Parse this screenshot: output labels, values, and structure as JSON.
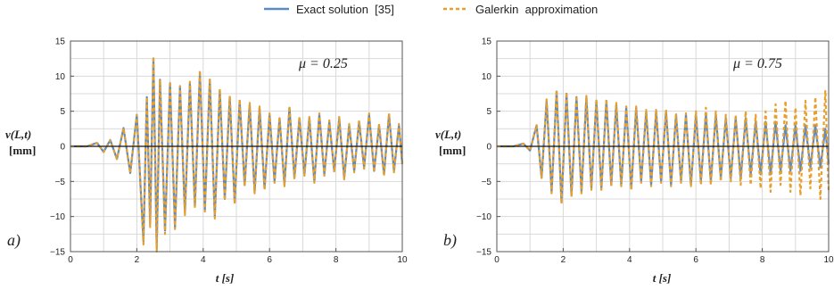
{
  "legend": [
    {
      "label": "Exact solution  [35]",
      "color": "#5b8ac6",
      "dash": "solid"
    },
    {
      "label": "Galerkin  approximation",
      "color": "#e8a02c",
      "dash": "dashed"
    }
  ],
  "chart_data": [
    {
      "type": "line",
      "panel_tag": "a)",
      "annotation": "μ = 0.25",
      "xlabel": "t [s]",
      "ylabel_line1": "v(L,t)",
      "ylabel_line2": "[mm]",
      "xlim": [
        0,
        10
      ],
      "ylim": [
        -15,
        15
      ],
      "xticks": [
        0,
        2,
        4,
        6,
        8,
        10
      ],
      "yticks": [
        -15,
        -10,
        -5,
        0,
        5,
        10,
        15
      ],
      "grid": true,
      "series": [
        {
          "name": "Exact solution  [35]",
          "peaks": [
            [
              0.8,
              0.5
            ],
            [
              1.0,
              -0.8
            ],
            [
              1.2,
              0.9
            ],
            [
              1.4,
              -1.8
            ],
            [
              1.6,
              2.6
            ],
            [
              1.8,
              -3.8
            ],
            [
              2.0,
              4.5
            ],
            [
              2.2,
              -13.5
            ],
            [
              2.3,
              7.0
            ],
            [
              2.4,
              -11.0
            ],
            [
              2.5,
              12.5
            ],
            [
              2.6,
              -14.5
            ],
            [
              2.7,
              9.5
            ],
            [
              2.85,
              -12.0
            ],
            [
              3.0,
              9.0
            ],
            [
              3.15,
              -11.5
            ],
            [
              3.3,
              8.5
            ],
            [
              3.45,
              -9.5
            ],
            [
              3.6,
              9.0
            ],
            [
              3.75,
              -8.5
            ],
            [
              3.9,
              10.5
            ],
            [
              4.05,
              -9.0
            ],
            [
              4.2,
              9.5
            ],
            [
              4.35,
              -10.0
            ],
            [
              4.5,
              8.0
            ],
            [
              4.65,
              -7.5
            ],
            [
              4.8,
              7.0
            ],
            [
              4.95,
              -8.0
            ],
            [
              5.1,
              6.5
            ],
            [
              5.25,
              -5.5
            ],
            [
              5.4,
              6.0
            ],
            [
              5.55,
              -6.5
            ],
            [
              5.7,
              5.5
            ],
            [
              5.85,
              -6.0
            ],
            [
              6.0,
              4.5
            ],
            [
              6.15,
              -5.0
            ],
            [
              6.3,
              4.0
            ],
            [
              6.45,
              -5.5
            ],
            [
              6.6,
              5.5
            ],
            [
              6.75,
              -4.5
            ],
            [
              6.9,
              4.0
            ],
            [
              7.05,
              -4.0
            ],
            [
              7.2,
              4.0
            ],
            [
              7.35,
              -5.0
            ],
            [
              7.5,
              4.5
            ],
            [
              7.65,
              -4.0
            ],
            [
              7.8,
              3.5
            ],
            [
              7.95,
              -3.5
            ],
            [
              8.1,
              4.0
            ],
            [
              8.25,
              -4.5
            ],
            [
              8.4,
              3.0
            ],
            [
              8.55,
              -3.5
            ],
            [
              8.7,
              3.5
            ],
            [
              8.85,
              -3.0
            ],
            [
              9.0,
              4.5
            ],
            [
              9.15,
              -3.5
            ],
            [
              9.3,
              3.0
            ],
            [
              9.45,
              -4.0
            ],
            [
              9.6,
              4.5
            ],
            [
              9.75,
              -3.5
            ],
            [
              9.9,
              3.0
            ],
            [
              10.0,
              -2.5
            ]
          ]
        },
        {
          "name": "Galerkin  approximation",
          "peaks": [
            [
              0.8,
              0.5
            ],
            [
              1.0,
              -0.8
            ],
            [
              1.2,
              0.9
            ],
            [
              1.4,
              -1.8
            ],
            [
              1.6,
              2.6
            ],
            [
              1.8,
              -3.8
            ],
            [
              2.0,
              4.5
            ],
            [
              2.2,
              -14.0
            ],
            [
              2.3,
              7.0
            ],
            [
              2.4,
              -11.5
            ],
            [
              2.5,
              12.8
            ],
            [
              2.6,
              -15.0
            ],
            [
              2.7,
              9.5
            ],
            [
              2.85,
              -12.5
            ],
            [
              3.0,
              9.2
            ],
            [
              3.15,
              -11.8
            ],
            [
              3.3,
              8.6
            ],
            [
              3.45,
              -9.8
            ],
            [
              3.6,
              9.2
            ],
            [
              3.75,
              -8.8
            ],
            [
              3.9,
              10.8
            ],
            [
              4.05,
              -9.3
            ],
            [
              4.2,
              9.7
            ],
            [
              4.35,
              -10.3
            ],
            [
              4.5,
              8.2
            ],
            [
              4.65,
              -7.7
            ],
            [
              4.8,
              7.2
            ],
            [
              4.95,
              -8.2
            ],
            [
              5.1,
              6.7
            ],
            [
              5.25,
              -5.7
            ],
            [
              5.4,
              6.2
            ],
            [
              5.55,
              -6.7
            ],
            [
              5.7,
              5.7
            ],
            [
              5.85,
              -6.2
            ],
            [
              6.0,
              4.7
            ],
            [
              6.15,
              -5.2
            ],
            [
              6.3,
              4.2
            ],
            [
              6.45,
              -5.7
            ],
            [
              6.6,
              5.7
            ],
            [
              6.75,
              -4.7
            ],
            [
              6.9,
              4.2
            ],
            [
              7.05,
              -4.2
            ],
            [
              7.2,
              4.2
            ],
            [
              7.35,
              -5.2
            ],
            [
              7.5,
              4.7
            ],
            [
              7.65,
              -4.2
            ],
            [
              7.8,
              3.7
            ],
            [
              7.95,
              -3.7
            ],
            [
              8.1,
              4.2
            ],
            [
              8.25,
              -4.7
            ],
            [
              8.4,
              3.2
            ],
            [
              8.55,
              -3.7
            ],
            [
              8.7,
              3.7
            ],
            [
              8.85,
              -3.2
            ],
            [
              9.0,
              4.7
            ],
            [
              9.15,
              -3.7
            ],
            [
              9.3,
              3.2
            ],
            [
              9.45,
              -4.2
            ],
            [
              9.6,
              4.7
            ],
            [
              9.75,
              -3.7
            ],
            [
              9.9,
              3.2
            ],
            [
              10.0,
              -2.7
            ]
          ]
        }
      ]
    },
    {
      "type": "line",
      "panel_tag": "b)",
      "annotation": "μ = 0.75",
      "xlabel": "t [s]",
      "ylabel_line1": "v(L,t)",
      "ylabel_line2": "[mm]",
      "xlim": [
        0,
        10
      ],
      "ylim": [
        -15,
        15
      ],
      "xticks": [
        0,
        2,
        4,
        6,
        8,
        10
      ],
      "yticks": [
        -15,
        -10,
        -5,
        0,
        5,
        10,
        15
      ],
      "grid": true,
      "series": [
        {
          "name": "Exact solution  [35]",
          "peaks": [
            [
              0.8,
              0.4
            ],
            [
              1.0,
              -0.6
            ],
            [
              1.2,
              3.0
            ],
            [
              1.35,
              -4.5
            ],
            [
              1.5,
              6.5
            ],
            [
              1.65,
              -6.5
            ],
            [
              1.8,
              7.8
            ],
            [
              1.95,
              -8.0
            ],
            [
              2.1,
              7.5
            ],
            [
              2.25,
              -7.0
            ],
            [
              2.4,
              7.0
            ],
            [
              2.55,
              -6.5
            ],
            [
              2.7,
              7.0
            ],
            [
              2.85,
              -6.0
            ],
            [
              3.0,
              6.5
            ],
            [
              3.15,
              -6.0
            ],
            [
              3.3,
              6.5
            ],
            [
              3.45,
              -5.5
            ],
            [
              3.6,
              6.0
            ],
            [
              3.75,
              -5.5
            ],
            [
              3.9,
              5.5
            ],
            [
              4.05,
              -6.0
            ],
            [
              4.2,
              5.5
            ],
            [
              4.35,
              -5.0
            ],
            [
              4.5,
              5.0
            ],
            [
              4.65,
              -5.5
            ],
            [
              4.8,
              5.0
            ],
            [
              4.95,
              -5.0
            ],
            [
              5.1,
              5.0
            ],
            [
              5.25,
              -5.5
            ],
            [
              5.4,
              4.5
            ],
            [
              5.55,
              -5.0
            ],
            [
              5.7,
              4.5
            ],
            [
              5.85,
              -5.5
            ],
            [
              6.0,
              4.5
            ],
            [
              6.15,
              -5.0
            ],
            [
              6.3,
              4.5
            ],
            [
              6.45,
              -5.0
            ],
            [
              6.6,
              4.5
            ],
            [
              6.75,
              -4.5
            ],
            [
              6.9,
              4.0
            ],
            [
              7.05,
              -4.5
            ],
            [
              7.2,
              4.0
            ],
            [
              7.35,
              -4.5
            ],
            [
              7.5,
              4.0
            ],
            [
              7.65,
              -4.0
            ],
            [
              7.8,
              3.5
            ],
            [
              7.95,
              -4.0
            ],
            [
              8.1,
              3.5
            ],
            [
              8.25,
              -4.0
            ],
            [
              8.4,
              3.5
            ],
            [
              8.55,
              -3.5
            ],
            [
              8.7,
              3.0
            ],
            [
              8.85,
              -3.5
            ],
            [
              9.0,
              3.0
            ],
            [
              9.15,
              -3.5
            ],
            [
              9.3,
              3.0
            ],
            [
              9.45,
              -3.0
            ],
            [
              9.6,
              3.0
            ],
            [
              9.75,
              -3.0
            ],
            [
              9.9,
              2.5
            ],
            [
              10.0,
              -2.5
            ]
          ]
        },
        {
          "name": "Galerkin  approximation",
          "peaks": [
            [
              0.8,
              0.4
            ],
            [
              1.0,
              -0.6
            ],
            [
              1.2,
              3.0
            ],
            [
              1.35,
              -4.5
            ],
            [
              1.5,
              6.7
            ],
            [
              1.65,
              -6.7
            ],
            [
              1.8,
              8.0
            ],
            [
              1.95,
              -8.2
            ],
            [
              2.1,
              7.7
            ],
            [
              2.25,
              -7.2
            ],
            [
              2.4,
              7.2
            ],
            [
              2.55,
              -6.7
            ],
            [
              2.7,
              7.2
            ],
            [
              2.85,
              -6.2
            ],
            [
              3.0,
              6.7
            ],
            [
              3.15,
              -6.2
            ],
            [
              3.3,
              6.7
            ],
            [
              3.45,
              -5.7
            ],
            [
              3.6,
              6.2
            ],
            [
              3.75,
              -5.7
            ],
            [
              3.9,
              5.7
            ],
            [
              4.05,
              -6.2
            ],
            [
              4.2,
              5.7
            ],
            [
              4.35,
              -5.2
            ],
            [
              4.5,
              5.2
            ],
            [
              4.65,
              -5.7
            ],
            [
              4.8,
              5.2
            ],
            [
              4.95,
              -5.2
            ],
            [
              5.1,
              5.2
            ],
            [
              5.25,
              -5.7
            ],
            [
              5.4,
              4.7
            ],
            [
              5.55,
              -5.2
            ],
            [
              5.7,
              4.7
            ],
            [
              5.85,
              -5.7
            ],
            [
              6.0,
              5.0
            ],
            [
              6.15,
              -5.5
            ],
            [
              6.3,
              5.5
            ],
            [
              6.45,
              -5.5
            ],
            [
              6.6,
              5.0
            ],
            [
              6.75,
              -5.0
            ],
            [
              6.9,
              4.5
            ],
            [
              7.05,
              -5.0
            ],
            [
              7.2,
              4.5
            ],
            [
              7.35,
              -5.5
            ],
            [
              7.5,
              5.0
            ],
            [
              7.65,
              -5.5
            ],
            [
              7.8,
              4.5
            ],
            [
              7.95,
              -6.0
            ],
            [
              8.1,
              5.0
            ],
            [
              8.25,
              -6.5
            ],
            [
              8.4,
              6.0
            ],
            [
              8.55,
              -5.5
            ],
            [
              8.7,
              6.5
            ],
            [
              8.85,
              -6.5
            ],
            [
              9.0,
              5.5
            ],
            [
              9.15,
              -7.0
            ],
            [
              9.3,
              6.5
            ],
            [
              9.45,
              -6.0
            ],
            [
              9.6,
              7.0
            ],
            [
              9.75,
              -7.5
            ],
            [
              9.9,
              8.0
            ],
            [
              10.0,
              -6.5
            ]
          ]
        }
      ]
    }
  ]
}
